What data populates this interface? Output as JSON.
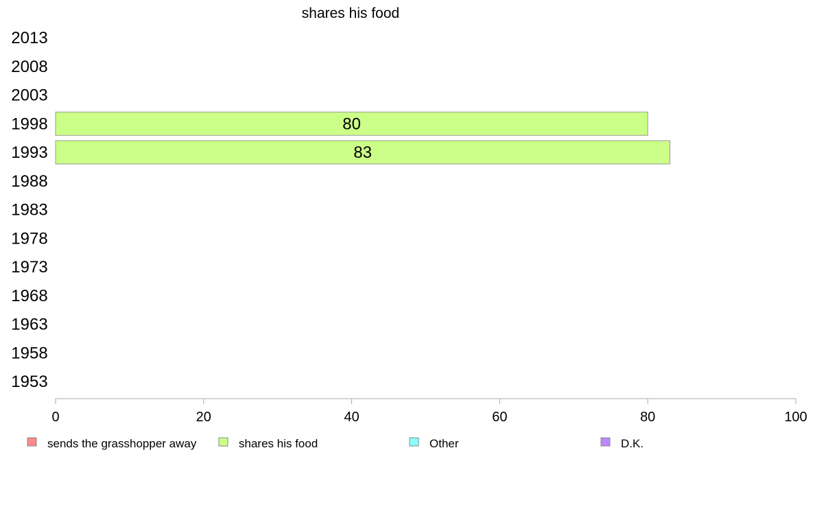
{
  "chart_data": {
    "type": "bar",
    "orientation": "horizontal",
    "title": "shares his food",
    "xlabel": "",
    "ylabel": "",
    "categories": [
      "2013",
      "2008",
      "2003",
      "1998",
      "1993",
      "1988",
      "1983",
      "1978",
      "1973",
      "1968",
      "1963",
      "1958",
      "1953"
    ],
    "series": [
      {
        "name": "shares his food",
        "color": "#ccff88",
        "values": [
          null,
          null,
          null,
          80,
          83,
          null,
          null,
          null,
          null,
          null,
          null,
          null,
          null
        ]
      }
    ],
    "data_labels": [
      null,
      null,
      null,
      "80",
      "83",
      null,
      null,
      null,
      null,
      null,
      null,
      null,
      null
    ],
    "xlim": [
      0,
      100
    ],
    "xticks": [
      "0",
      "20",
      "40",
      "60",
      "80",
      "100"
    ],
    "grid": false,
    "legend": {
      "placement": "bottom",
      "items": [
        {
          "label": "sends the grasshopper away",
          "color": "#ff8888"
        },
        {
          "label": "shares his food",
          "color": "#ccff88"
        },
        {
          "label": "Other",
          "color": "#88ffff"
        },
        {
          "label": "D.K.",
          "color": "#bb88ff"
        }
      ]
    }
  }
}
